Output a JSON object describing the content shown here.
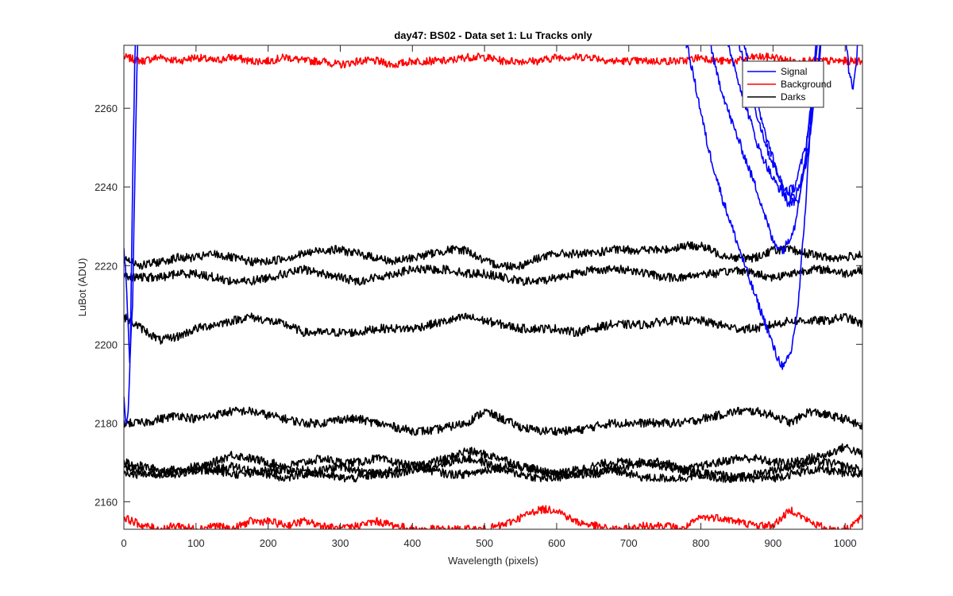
{
  "chart_data": {
    "type": "line",
    "title": "day47: BS02 - Data set 1: Lu Tracks only",
    "xlabel": "Wavelength (pixels)",
    "ylabel": "LuBot (ADU)",
    "xlim": [
      0,
      1024
    ],
    "ylim": [
      2153,
      2276
    ],
    "x_ticks": [
      0,
      100,
      200,
      300,
      400,
      500,
      600,
      700,
      800,
      900,
      1000
    ],
    "y_ticks": [
      2160,
      2180,
      2200,
      2220,
      2240,
      2260
    ],
    "grid": false,
    "legend_position": "top-right",
    "legend": [
      {
        "label": "Signal",
        "color": "#0000ff"
      },
      {
        "label": "Background",
        "color": "#ff0000"
      },
      {
        "label": "Darks",
        "color": "#000000"
      }
    ],
    "x": [
      0,
      25,
      50,
      75,
      100,
      125,
      150,
      175,
      200,
      225,
      250,
      275,
      300,
      325,
      350,
      375,
      400,
      425,
      450,
      475,
      500,
      525,
      550,
      575,
      600,
      625,
      650,
      675,
      700,
      725,
      750,
      775,
      800,
      825,
      850,
      875,
      900,
      925,
      950,
      975,
      1000,
      1024
    ],
    "series": [
      {
        "group": "Background",
        "color": "#ff0000",
        "values": [
          2273,
          2272,
          2273,
          2272,
          2273,
          2272,
          2273,
          2272,
          2272,
          2273,
          2272,
          2272,
          2271,
          2272,
          2272,
          2271,
          2272,
          2272,
          2272,
          2273,
          2273,
          2272,
          2272,
          2272,
          2273,
          2273,
          2273,
          2272,
          2272,
          2272,
          2272,
          2272,
          2273,
          2272,
          2272,
          2273,
          2273,
          2272,
          2272,
          2272,
          2272,
          2272
        ]
      },
      {
        "group": "Background",
        "color": "#ff0000",
        "values": [
          2156,
          2154,
          2153,
          2154,
          2153,
          2154,
          2153,
          2155,
          2155,
          2154,
          2155,
          2154,
          2153,
          2154,
          2155,
          2154,
          2153,
          2153,
          2153,
          2153,
          2153,
          2154,
          2156,
          2158,
          2158,
          2155,
          2154,
          2153,
          2153,
          2154,
          2154,
          2153,
          2156,
          2156,
          2155,
          2154,
          2154,
          2158,
          2155,
          2153,
          2153,
          2156
        ]
      },
      {
        "group": "Darks",
        "color": "#000000",
        "values": [
          2222,
          2220,
          2221,
          2222,
          2222,
          2223,
          2222,
          2221,
          2221,
          2222,
          2223,
          2224,
          2224,
          2223,
          2222,
          2221,
          2222,
          2223,
          2224,
          2224,
          2221,
          2220,
          2220,
          2222,
          2223,
          2223,
          2223,
          2224,
          2224,
          2224,
          2224,
          2225,
          2225,
          2223,
          2222,
          2222,
          2224,
          2224,
          2223,
          2222,
          2222,
          2223
        ]
      },
      {
        "group": "Darks",
        "color": "#000000",
        "values": [
          2217,
          2217,
          2217,
          2218,
          2218,
          2217,
          2216,
          2216,
          2217,
          2218,
          2219,
          2218,
          2217,
          2216,
          2217,
          2218,
          2219,
          2219,
          2219,
          2218,
          2218,
          2217,
          2216,
          2216,
          2217,
          2218,
          2219,
          2219,
          2219,
          2218,
          2217,
          2217,
          2218,
          2218,
          2219,
          2218,
          2217,
          2218,
          2219,
          2219,
          2218,
          2219
        ]
      },
      {
        "group": "Darks",
        "color": "#000000",
        "values": [
          2207,
          2204,
          2201,
          2202,
          2204,
          2205,
          2206,
          2207,
          2206,
          2205,
          2203,
          2203,
          2203,
          2203,
          2204,
          2204,
          2204,
          2205,
          2206,
          2207,
          2206,
          2205,
          2204,
          2204,
          2204,
          2203,
          2204,
          2205,
          2205,
          2205,
          2206,
          2206,
          2206,
          2205,
          2204,
          2204,
          2205,
          2206,
          2206,
          2206,
          2207,
          2205
        ]
      },
      {
        "group": "Darks",
        "color": "#000000",
        "values": [
          2180,
          2180,
          2181,
          2182,
          2181,
          2182,
          2183,
          2183,
          2182,
          2181,
          2180,
          2180,
          2181,
          2181,
          2180,
          2179,
          2178,
          2178,
          2179,
          2180,
          2183,
          2181,
          2179,
          2178,
          2178,
          2178,
          2179,
          2180,
          2180,
          2180,
          2180,
          2180,
          2181,
          2182,
          2183,
          2183,
          2182,
          2180,
          2183,
          2182,
          2181,
          2179
        ]
      },
      {
        "group": "Darks",
        "color": "#000000",
        "values": [
          2170,
          2169,
          2168,
          2168,
          2168,
          2170,
          2172,
          2171,
          2170,
          2169,
          2170,
          2171,
          2170,
          2170,
          2171,
          2170,
          2169,
          2170,
          2171,
          2173,
          2172,
          2171,
          2169,
          2168,
          2167,
          2168,
          2169,
          2170,
          2170,
          2170,
          2169,
          2168,
          2169,
          2170,
          2171,
          2171,
          2170,
          2170,
          2171,
          2172,
          2174,
          2172
        ]
      },
      {
        "group": "Darks",
        "color": "#000000",
        "values": [
          2167,
          2167,
          2167,
          2168,
          2169,
          2168,
          2167,
          2167,
          2168,
          2168,
          2168,
          2167,
          2166,
          2166,
          2167,
          2168,
          2169,
          2168,
          2167,
          2167,
          2168,
          2169,
          2169,
          2168,
          2167,
          2167,
          2168,
          2168,
          2167,
          2166,
          2166,
          2166,
          2167,
          2167,
          2166,
          2166,
          2166,
          2167,
          2168,
          2168,
          2167,
          2167
        ]
      },
      {
        "group": "Darks",
        "color": "#000000",
        "values": [
          2169,
          2168,
          2167,
          2167,
          2168,
          2168,
          2169,
          2168,
          2167,
          2166,
          2167,
          2168,
          2169,
          2168,
          2167,
          2167,
          2168,
          2169,
          2170,
          2171,
          2170,
          2168,
          2167,
          2166,
          2166,
          2167,
          2167,
          2168,
          2169,
          2170,
          2170,
          2168,
          2167,
          2166,
          2166,
          2167,
          2168,
          2169,
          2170,
          2170,
          2169,
          2168
        ]
      },
      {
        "group": "Signal",
        "color": "#0000ff",
        "x": [
          0,
          4,
          8,
          12,
          16,
          20
        ],
        "values": [
          2224,
          2214,
          2195,
          2210,
          2250,
          2285
        ]
      },
      {
        "group": "Signal",
        "color": "#0000ff",
        "x": [
          0,
          3,
          6,
          9,
          12,
          15,
          18
        ],
        "values": [
          2186,
          2180,
          2182,
          2200,
          2240,
          2270,
          2290
        ]
      },
      {
        "group": "Signal",
        "color": "#0000ff",
        "x": [
          770,
          790,
          810,
          830,
          850,
          870,
          890,
          905,
          915,
          925,
          935,
          945,
          955,
          965
        ],
        "values": [
          2285,
          2268,
          2250,
          2237,
          2226,
          2215,
          2205,
          2197,
          2194,
          2198,
          2210,
          2235,
          2265,
          2290
        ]
      },
      {
        "group": "Signal",
        "color": "#0000ff",
        "x": [
          800,
          820,
          840,
          860,
          880,
          900,
          915,
          930,
          945,
          960
        ],
        "values": [
          2290,
          2270,
          2258,
          2248,
          2238,
          2226,
          2224,
          2230,
          2248,
          2275
        ]
      },
      {
        "group": "Signal",
        "color": "#0000ff",
        "x": [
          820,
          840,
          860,
          880,
          900,
          915,
          930,
          945,
          960,
          975
        ],
        "values": [
          2288,
          2275,
          2262,
          2250,
          2242,
          2238,
          2240,
          2250,
          2268,
          2290
        ]
      },
      {
        "group": "Signal",
        "color": "#0000ff",
        "x": [
          835,
          855,
          875,
          895,
          915,
          930,
          945,
          960,
          975
        ],
        "values": [
          2290,
          2275,
          2260,
          2248,
          2240,
          2237,
          2245,
          2265,
          2290
        ]
      },
      {
        "group": "Signal",
        "color": "#0000ff",
        "x": [
          845,
          865,
          885,
          905,
          920,
          935,
          950,
          965
        ],
        "values": [
          2290,
          2272,
          2256,
          2244,
          2236,
          2236,
          2252,
          2285
        ]
      },
      {
        "group": "Signal",
        "color": "#0000ff",
        "x": [
          1000,
          1005,
          1010,
          1015,
          1020
        ],
        "values": [
          2280,
          2270,
          2265,
          2270,
          2285
        ]
      }
    ]
  }
}
